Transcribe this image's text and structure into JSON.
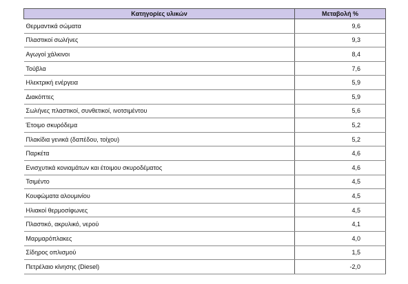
{
  "table": {
    "header": [
      "Κατηγορίες υλικών",
      "Μεταβολή %"
    ],
    "rows": [
      [
        "Θερμαντικά σώματα",
        "9,6"
      ],
      [
        "Πλαστικοί σωλήνες",
        "9,3"
      ],
      [
        "Αγωγοί χάλκινοι",
        "8,4"
      ],
      [
        "Τούβλα",
        "7,6"
      ],
      [
        "Ηλεκτρική ενέργεια",
        "5,9"
      ],
      [
        "Διακόπτες",
        "5,9"
      ],
      [
        "Σωλήνες πλαστικοί, συνθετικοί, ινοτσιμέντου",
        "5,6"
      ],
      [
        "Έτοιμο σκυρόδεμα",
        "5,2"
      ],
      [
        "Πλακίδια γενικά (δαπέδου, τοίχου)",
        "5,2"
      ],
      [
        "Παρκέτα",
        "4,6"
      ],
      [
        "Ενισχυτικά κονιαμάτων και έτοιμου σκυροδέματος",
        "4,6"
      ],
      [
        "Τσιμέντο",
        "4,5"
      ],
      [
        "Κουφώματα αλουμινίου",
        "4,5"
      ],
      [
        "Ηλιακοί θερμοσίφωνες",
        "4,5"
      ],
      [
        "Πλαστικό, ακρυλικό, νερού",
        "4,1"
      ],
      [
        "Μαρμαρόπλακες",
        "4,0"
      ],
      [
        "Σίδηρος οπλισμού",
        "1,5"
      ],
      [
        "Πετρέλαιο κίνησης (Diesel)",
        "-2,0"
      ]
    ]
  }
}
